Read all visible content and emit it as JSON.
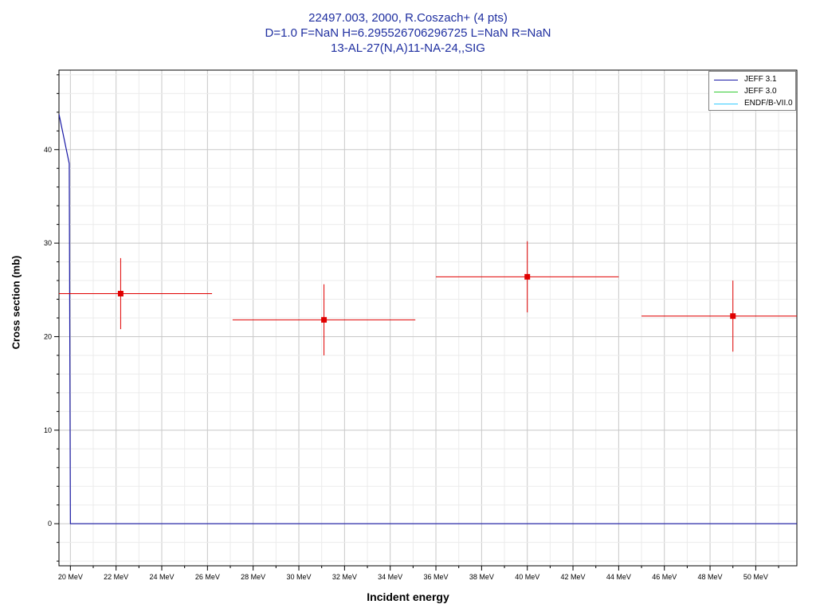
{
  "header": {
    "title_line1": "22497.003, 2000, R.Coszach+ (4 pts)",
    "title_line2": "D=1.0 F=NaN H=6.295526706296725 L=NaN R=NaN",
    "title_line3": "13-AL-27(N,A)11-NA-24,,SIG"
  },
  "legend": {
    "items": [
      {
        "label": "JEFF 3.1",
        "color": "#1a1aa6"
      },
      {
        "label": "JEFF 3.0",
        "color": "#33cc33"
      },
      {
        "label": "ENDF/B-VII.0",
        "color": "#33ccff"
      }
    ]
  },
  "chart_data": {
    "type": "scatter",
    "title": "22497.003, 2000, R.Coszach+ (4 pts)",
    "xlabel": "Incident energy",
    "ylabel": "Cross section (mb)",
    "xlim": [
      19.5,
      51.8
    ],
    "ylim": [
      -4.5,
      48.5
    ],
    "x_ticks": [
      20,
      22,
      24,
      26,
      28,
      30,
      32,
      34,
      36,
      38,
      40,
      42,
      44,
      46,
      48,
      50
    ],
    "x_tick_labels": [
      "20 MeV",
      "22 MeV",
      "24 MeV",
      "26 MeV",
      "28 MeV",
      "30 MeV",
      "32 MeV",
      "34 MeV",
      "36 MeV",
      "38 MeV",
      "40 MeV",
      "42 MeV",
      "44 MeV",
      "46 MeV",
      "48 MeV",
      "50 MeV"
    ],
    "y_ticks": [
      0,
      10,
      20,
      30,
      40
    ],
    "y_tick_labels": [
      "0",
      "10",
      "20",
      "30",
      "40"
    ],
    "grid": true,
    "legend_position": "top-right",
    "experimental_points": [
      {
        "x": 22.2,
        "y": 24.6,
        "x_err": [
          19.5,
          26.2
        ],
        "y_err": [
          20.8,
          28.4
        ]
      },
      {
        "x": 31.1,
        "y": 21.8,
        "x_err": [
          27.1,
          35.1
        ],
        "y_err": [
          18.0,
          25.6
        ]
      },
      {
        "x": 40.0,
        "y": 26.4,
        "x_err": [
          36.0,
          44.0
        ],
        "y_err": [
          22.6,
          30.2
        ]
      },
      {
        "x": 49.0,
        "y": 22.2,
        "x_err": [
          45.0,
          51.8
        ],
        "y_err": [
          18.4,
          26.0
        ]
      }
    ],
    "series": [
      {
        "name": "JEFF 3.1",
        "x": [
          19.5,
          19.95,
          20.0,
          51.8
        ],
        "y": [
          43.8,
          38.5,
          0,
          0
        ]
      },
      {
        "name": "JEFF 3.0",
        "x": [],
        "y": []
      },
      {
        "name": "ENDF/B-VII.0",
        "x": [],
        "y": []
      }
    ]
  }
}
